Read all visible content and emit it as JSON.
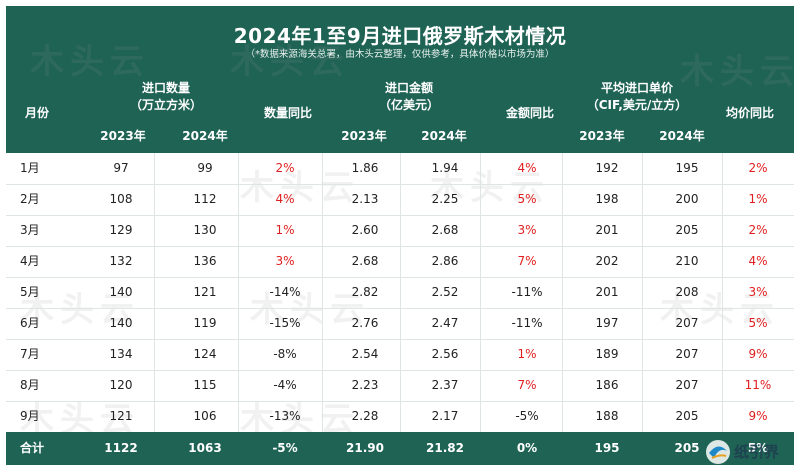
{
  "title": "2024年1至9月进口俄罗斯木材情况",
  "subtitle": "（*数据来源海关总署，由木头云整理，仅供参考，具体价格以市场为准）",
  "headers": {
    "month": "月份",
    "volume": "进口数量",
    "volume_unit": "（万立方米）",
    "volume_yoy": "数量同比",
    "amount": "进口金额",
    "amount_unit": "（亿美元）",
    "amount_yoy": "金额同比",
    "price": "平均进口单价",
    "price_unit": "（CIF,美元/立方）",
    "price_yoy": "均价同比",
    "y2023": "2023年",
    "y2024": "2024年"
  },
  "rows": [
    {
      "month": "1月",
      "v23": "97",
      "v24": "99",
      "vy": "2%",
      "a23": "1.86",
      "a24": "1.94",
      "ay": "4%",
      "p23": "192",
      "p24": "195",
      "py": "2%"
    },
    {
      "month": "2月",
      "v23": "108",
      "v24": "112",
      "vy": "4%",
      "a23": "2.13",
      "a24": "2.25",
      "ay": "5%",
      "p23": "198",
      "p24": "200",
      "py": "1%"
    },
    {
      "month": "3月",
      "v23": "129",
      "v24": "130",
      "vy": "1%",
      "a23": "2.60",
      "a24": "2.68",
      "ay": "3%",
      "p23": "201",
      "p24": "205",
      "py": "2%"
    },
    {
      "month": "4月",
      "v23": "132",
      "v24": "136",
      "vy": "3%",
      "a23": "2.68",
      "a24": "2.86",
      "ay": "7%",
      "p23": "202",
      "p24": "210",
      "py": "4%"
    },
    {
      "month": "5月",
      "v23": "140",
      "v24": "121",
      "vy": "-14%",
      "a23": "2.82",
      "a24": "2.52",
      "ay": "-11%",
      "p23": "201",
      "p24": "208",
      "py": "3%"
    },
    {
      "month": "6月",
      "v23": "140",
      "v24": "119",
      "vy": "-15%",
      "a23": "2.76",
      "a24": "2.47",
      "ay": "-11%",
      "p23": "197",
      "p24": "207",
      "py": "5%"
    },
    {
      "month": "7月",
      "v23": "134",
      "v24": "124",
      "vy": "-8%",
      "a23": "2.54",
      "a24": "2.56",
      "ay": "1%",
      "p23": "189",
      "p24": "207",
      "py": "9%"
    },
    {
      "month": "8月",
      "v23": "120",
      "v24": "115",
      "vy": "-4%",
      "a23": "2.23",
      "a24": "2.37",
      "ay": "7%",
      "p23": "186",
      "p24": "207",
      "py": "11%"
    },
    {
      "month": "9月",
      "v23": "121",
      "v24": "106",
      "vy": "-13%",
      "a23": "2.28",
      "a24": "2.17",
      "ay": "-5%",
      "p23": "188",
      "p24": "205",
      "py": "9%"
    }
  ],
  "total": {
    "month": "合计",
    "v23": "1122",
    "v24": "1063",
    "vy": "-5%",
    "a23": "21.90",
    "a24": "21.82",
    "ay": "0%",
    "p23": "195",
    "p24": "205",
    "py": "5%"
  },
  "watermark": "木头云",
  "logo_text": "纸引界",
  "colors": {
    "header_bg": "#1f6355",
    "positive": "#e02020",
    "text": "#222222"
  }
}
